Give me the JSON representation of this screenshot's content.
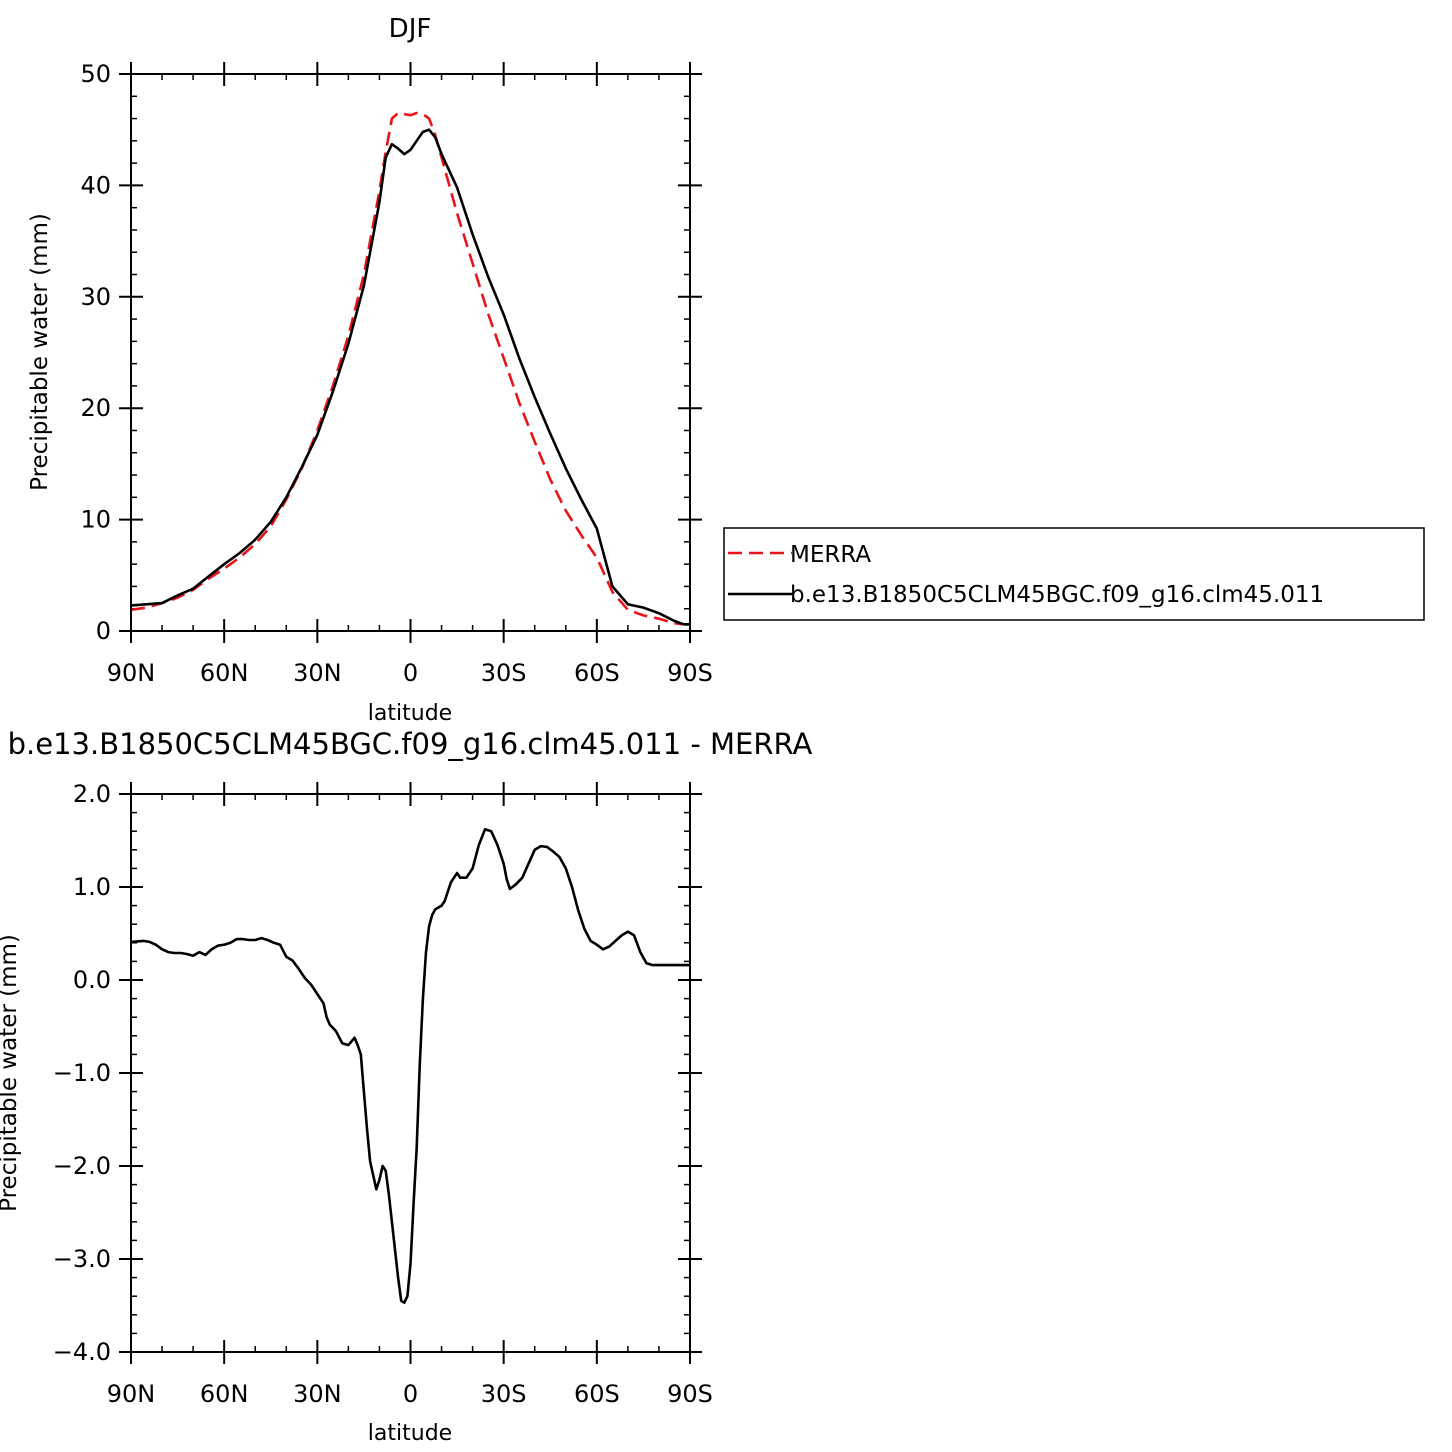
{
  "chart_data": [
    {
      "type": "line",
      "title": "DJF",
      "xlabel": "latitude",
      "ylabel": "Precipitable water (mm)",
      "xlim": [
        90,
        -90
      ],
      "ylim": [
        0,
        50
      ],
      "x_ticks": [
        90,
        60,
        30,
        0,
        -30,
        -60,
        -90
      ],
      "x_tick_labels": [
        "90N",
        "60N",
        "30N",
        "0",
        "30S",
        "60S",
        "90S"
      ],
      "y_ticks": [
        0,
        10,
        20,
        30,
        40,
        50
      ],
      "y_tick_labels": [
        "0",
        "10",
        "20",
        "30",
        "40",
        "50"
      ],
      "grid": false,
      "legend_position": "right",
      "series": [
        {
          "name": "MERRA",
          "color": "#e8141b",
          "dash": "dashed",
          "x": [
            90,
            85,
            80,
            75,
            70,
            65,
            60,
            55,
            50,
            45,
            40,
            35,
            30,
            25,
            20,
            15,
            10,
            8,
            6,
            4,
            2,
            0,
            -2,
            -4,
            -6,
            -8,
            -10,
            -15,
            -20,
            -25,
            -30,
            -35,
            -40,
            -45,
            -50,
            -55,
            -60,
            -65,
            -70,
            -75,
            -80,
            -85,
            -88,
            -90
          ],
          "y": [
            1.9,
            2.1,
            2.5,
            3.0,
            3.7,
            4.7,
            5.6,
            6.6,
            7.8,
            9.4,
            11.8,
            14.6,
            18.0,
            22.0,
            26.5,
            32.0,
            39.5,
            43.0,
            46.0,
            46.5,
            46.4,
            46.3,
            46.5,
            46.4,
            46.0,
            44.5,
            42.5,
            37.5,
            33.0,
            28.5,
            24.5,
            20.5,
            17.0,
            13.6,
            10.8,
            8.6,
            6.6,
            3.5,
            1.9,
            1.4,
            1.1,
            0.7,
            0.6,
            0.6
          ]
        },
        {
          "name": "b.e13.B1850C5CLM45BGC.f09_g16.clm45.011",
          "color": "#000000",
          "dash": "solid",
          "x": [
            90,
            85,
            80,
            75,
            70,
            65,
            60,
            55,
            50,
            45,
            40,
            35,
            30,
            25,
            20,
            15,
            10,
            8,
            6,
            4,
            2,
            0,
            -2,
            -4,
            -6,
            -8,
            -10,
            -15,
            -20,
            -25,
            -30,
            -35,
            -40,
            -45,
            -50,
            -55,
            -60,
            -65,
            -70,
            -75,
            -80,
            -85,
            -88,
            -90
          ],
          "y": [
            2.3,
            2.4,
            2.5,
            3.2,
            3.8,
            4.9,
            6.0,
            7.0,
            8.2,
            9.8,
            12.0,
            14.7,
            17.6,
            21.5,
            25.8,
            31.0,
            38.5,
            42.5,
            43.7,
            43.3,
            42.8,
            43.2,
            44.0,
            44.8,
            45.0,
            44.3,
            42.8,
            39.8,
            35.6,
            31.8,
            28.4,
            24.5,
            21.0,
            17.7,
            14.6,
            11.8,
            9.2,
            4.0,
            2.4,
            2.1,
            1.6,
            0.9,
            0.6,
            0.6
          ]
        }
      ]
    },
    {
      "type": "line",
      "title": "b.e13.B1850C5CLM45BGC.f09_g16.clm45.011 - MERRA",
      "xlabel": "latitude",
      "ylabel": "Precipitable water (mm)",
      "xlim": [
        90,
        -90
      ],
      "ylim": [
        -4.0,
        2.0
      ],
      "x_ticks": [
        90,
        60,
        30,
        0,
        -30,
        -60,
        -90
      ],
      "x_tick_labels": [
        "90N",
        "60N",
        "30N",
        "0",
        "30S",
        "60S",
        "90S"
      ],
      "y_ticks": [
        2,
        1,
        0,
        -1,
        -2,
        -3,
        -4
      ],
      "y_tick_labels": [
        "2.0",
        "1.0",
        "0.0",
        "−1.0",
        "−2.0",
        "−3.0",
        "−4.0"
      ],
      "grid": false,
      "series": [
        {
          "color": "#000000",
          "dash": "solid",
          "x": [
            90,
            86,
            84,
            82,
            80,
            78,
            76,
            74,
            72,
            70,
            68,
            66,
            64,
            62,
            60,
            58,
            56,
            54,
            52,
            50,
            48,
            46,
            44,
            42,
            40,
            38,
            36,
            34,
            32,
            30,
            28,
            27,
            26,
            24,
            22,
            20,
            18,
            17,
            16,
            15,
            14,
            13,
            12,
            11,
            10,
            9,
            8,
            7,
            6,
            5,
            4,
            3,
            2,
            1,
            0,
            -1,
            -2,
            -3,
            -4,
            -5,
            -6,
            -7,
            -8,
            -9,
            -10,
            -11,
            -12,
            -13,
            -14,
            -15,
            -16,
            -18,
            -20,
            -22,
            -24,
            -26,
            -28,
            -30,
            -31,
            -32,
            -34,
            -36,
            -38,
            -40,
            -42,
            -44,
            -46,
            -48,
            -50,
            -52,
            -54,
            -56,
            -58,
            -60,
            -62,
            -64,
            -66,
            -68,
            -70,
            -72,
            -74,
            -76,
            -78,
            -80,
            -82,
            -84,
            -86,
            -88,
            -90
          ],
          "y": [
            0.41,
            0.42,
            0.41,
            0.38,
            0.33,
            0.3,
            0.29,
            0.29,
            0.28,
            0.26,
            0.3,
            0.27,
            0.33,
            0.37,
            0.38,
            0.4,
            0.44,
            0.44,
            0.43,
            0.43,
            0.45,
            0.43,
            0.4,
            0.38,
            0.25,
            0.21,
            0.12,
            0.02,
            -0.05,
            -0.15,
            -0.25,
            -0.4,
            -0.48,
            -0.55,
            -0.68,
            -0.7,
            -0.62,
            -0.7,
            -0.8,
            -1.2,
            -1.6,
            -1.95,
            -2.1,
            -2.25,
            -2.15,
            -2.0,
            -2.05,
            -2.3,
            -2.6,
            -2.9,
            -3.2,
            -3.45,
            -3.47,
            -3.4,
            -3.05,
            -2.4,
            -1.8,
            -0.9,
            -0.2,
            0.3,
            0.58,
            0.7,
            0.76,
            0.78,
            0.8,
            0.85,
            0.95,
            1.05,
            1.1,
            1.15,
            1.1,
            1.1,
            1.2,
            1.45,
            1.62,
            1.6,
            1.45,
            1.25,
            1.08,
            0.98,
            1.03,
            1.1,
            1.25,
            1.4,
            1.44,
            1.43,
            1.38,
            1.32,
            1.2,
            1.0,
            0.75,
            0.55,
            0.42,
            0.38,
            0.33,
            0.36,
            0.42,
            0.48,
            0.52,
            0.48,
            0.3,
            0.18,
            0.16,
            0.16,
            0.16,
            0.16,
            0.16,
            0.16,
            0.16
          ]
        }
      ]
    }
  ]
}
